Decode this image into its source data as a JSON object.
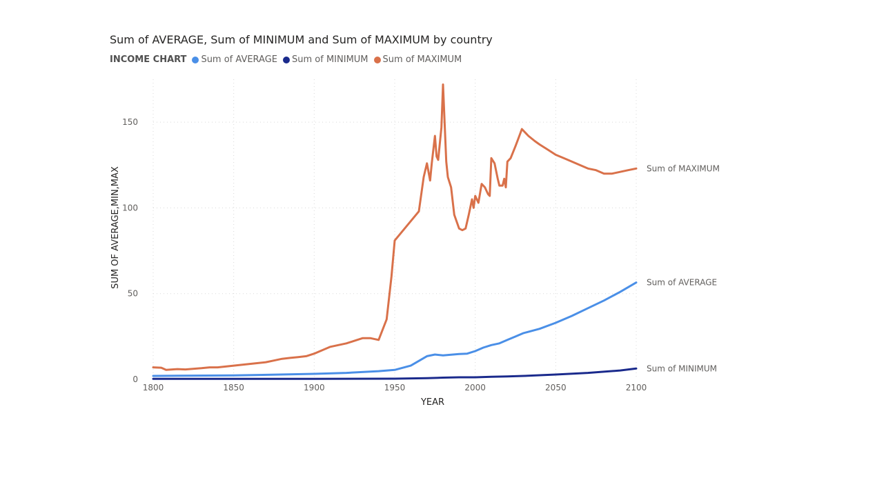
{
  "chart_data": {
    "type": "line",
    "title": "Sum of AVERAGE, Sum of MINIMUM and Sum of MAXIMUM by country",
    "legend_title": "INCOME CHART",
    "legend_position": "top-left",
    "xlabel": "YEAR",
    "ylabel": "SUM OF AVERAGE,MIN,MAX",
    "xlim": [
      1800,
      2100
    ],
    "ylim": [
      0,
      175
    ],
    "x_ticks": [
      1800,
      1850,
      1900,
      1950,
      2000,
      2050,
      2100
    ],
    "y_ticks": [
      0,
      50,
      100,
      150
    ],
    "grid": true,
    "series": [
      {
        "name": "Sum of AVERAGE",
        "color": "#4a8fe7",
        "points": [
          [
            1800,
            2
          ],
          [
            1850,
            2.3
          ],
          [
            1900,
            3.2
          ],
          [
            1920,
            3.8
          ],
          [
            1940,
            4.8
          ],
          [
            1950,
            5.5
          ],
          [
            1960,
            8
          ],
          [
            1970,
            13.5
          ],
          [
            1975,
            14.5
          ],
          [
            1980,
            14
          ],
          [
            1990,
            14.8
          ],
          [
            1995,
            15
          ],
          [
            2000,
            16.5
          ],
          [
            2005,
            18.5
          ],
          [
            2010,
            20
          ],
          [
            2015,
            21
          ],
          [
            2020,
            23
          ],
          [
            2025,
            25
          ],
          [
            2030,
            27
          ],
          [
            2040,
            29.5
          ],
          [
            2050,
            33
          ],
          [
            2060,
            37
          ],
          [
            2070,
            41.5
          ],
          [
            2080,
            46
          ],
          [
            2090,
            51
          ],
          [
            2100,
            56.5
          ]
        ]
      },
      {
        "name": "Sum of MINIMUM",
        "color": "#1a2a8c",
        "points": [
          [
            1800,
            0.3
          ],
          [
            1900,
            0.3
          ],
          [
            1950,
            0.4
          ],
          [
            1970,
            0.7
          ],
          [
            1980,
            1
          ],
          [
            1990,
            1.2
          ],
          [
            2000,
            1.2
          ],
          [
            2010,
            1.5
          ],
          [
            2020,
            1.7
          ],
          [
            2030,
            2
          ],
          [
            2050,
            2.8
          ],
          [
            2070,
            3.8
          ],
          [
            2090,
            5.2
          ],
          [
            2100,
            6.3
          ]
        ]
      },
      {
        "name": "Sum of MAXIMUM",
        "color": "#d9714a",
        "points": [
          [
            1800,
            7
          ],
          [
            1805,
            6.8
          ],
          [
            1808,
            5.5
          ],
          [
            1815,
            6
          ],
          [
            1820,
            5.8
          ],
          [
            1830,
            6.5
          ],
          [
            1835,
            7
          ],
          [
            1840,
            7
          ],
          [
            1845,
            7.5
          ],
          [
            1850,
            8
          ],
          [
            1855,
            8.5
          ],
          [
            1860,
            9
          ],
          [
            1865,
            9.5
          ],
          [
            1870,
            10
          ],
          [
            1875,
            11
          ],
          [
            1880,
            12
          ],
          [
            1885,
            12.5
          ],
          [
            1890,
            13
          ],
          [
            1895,
            13.5
          ],
          [
            1900,
            15
          ],
          [
            1905,
            17
          ],
          [
            1910,
            19
          ],
          [
            1915,
            20
          ],
          [
            1920,
            21
          ],
          [
            1925,
            22.5
          ],
          [
            1930,
            24
          ],
          [
            1935,
            24
          ],
          [
            1940,
            23
          ],
          [
            1945,
            35
          ],
          [
            1948,
            60
          ],
          [
            1950,
            81
          ],
          [
            1965,
            98
          ],
          [
            1968,
            118
          ],
          [
            1970,
            126
          ],
          [
            1972,
            116
          ],
          [
            1973,
            126
          ],
          [
            1975,
            142
          ],
          [
            1976,
            130
          ],
          [
            1977,
            128
          ],
          [
            1979,
            147
          ],
          [
            1980,
            172
          ],
          [
            1982,
            127
          ],
          [
            1983,
            118
          ],
          [
            1985,
            112
          ],
          [
            1987,
            96
          ],
          [
            1990,
            88
          ],
          [
            1992,
            87
          ],
          [
            1994,
            88
          ],
          [
            1996,
            96
          ],
          [
            1998,
            105
          ],
          [
            1999,
            100
          ],
          [
            2000,
            107
          ],
          [
            2002,
            103
          ],
          [
            2004,
            114
          ],
          [
            2006,
            112
          ],
          [
            2008,
            108
          ],
          [
            2009,
            107
          ],
          [
            2010,
            129
          ],
          [
            2012,
            126
          ],
          [
            2014,
            117
          ],
          [
            2015,
            113
          ],
          [
            2017,
            113
          ],
          [
            2018,
            117
          ],
          [
            2019,
            112
          ],
          [
            2020,
            127
          ],
          [
            2022,
            129
          ],
          [
            2025,
            136
          ],
          [
            2027,
            141
          ],
          [
            2029,
            146
          ],
          [
            2033,
            142
          ],
          [
            2037,
            139
          ],
          [
            2040,
            137
          ],
          [
            2045,
            134
          ],
          [
            2050,
            131
          ],
          [
            2055,
            129
          ],
          [
            2060,
            127
          ],
          [
            2065,
            125
          ],
          [
            2070,
            123
          ],
          [
            2075,
            122
          ],
          [
            2080,
            120
          ],
          [
            2085,
            120
          ],
          [
            2090,
            121
          ],
          [
            2095,
            122
          ],
          [
            2100,
            123
          ]
        ]
      }
    ]
  }
}
